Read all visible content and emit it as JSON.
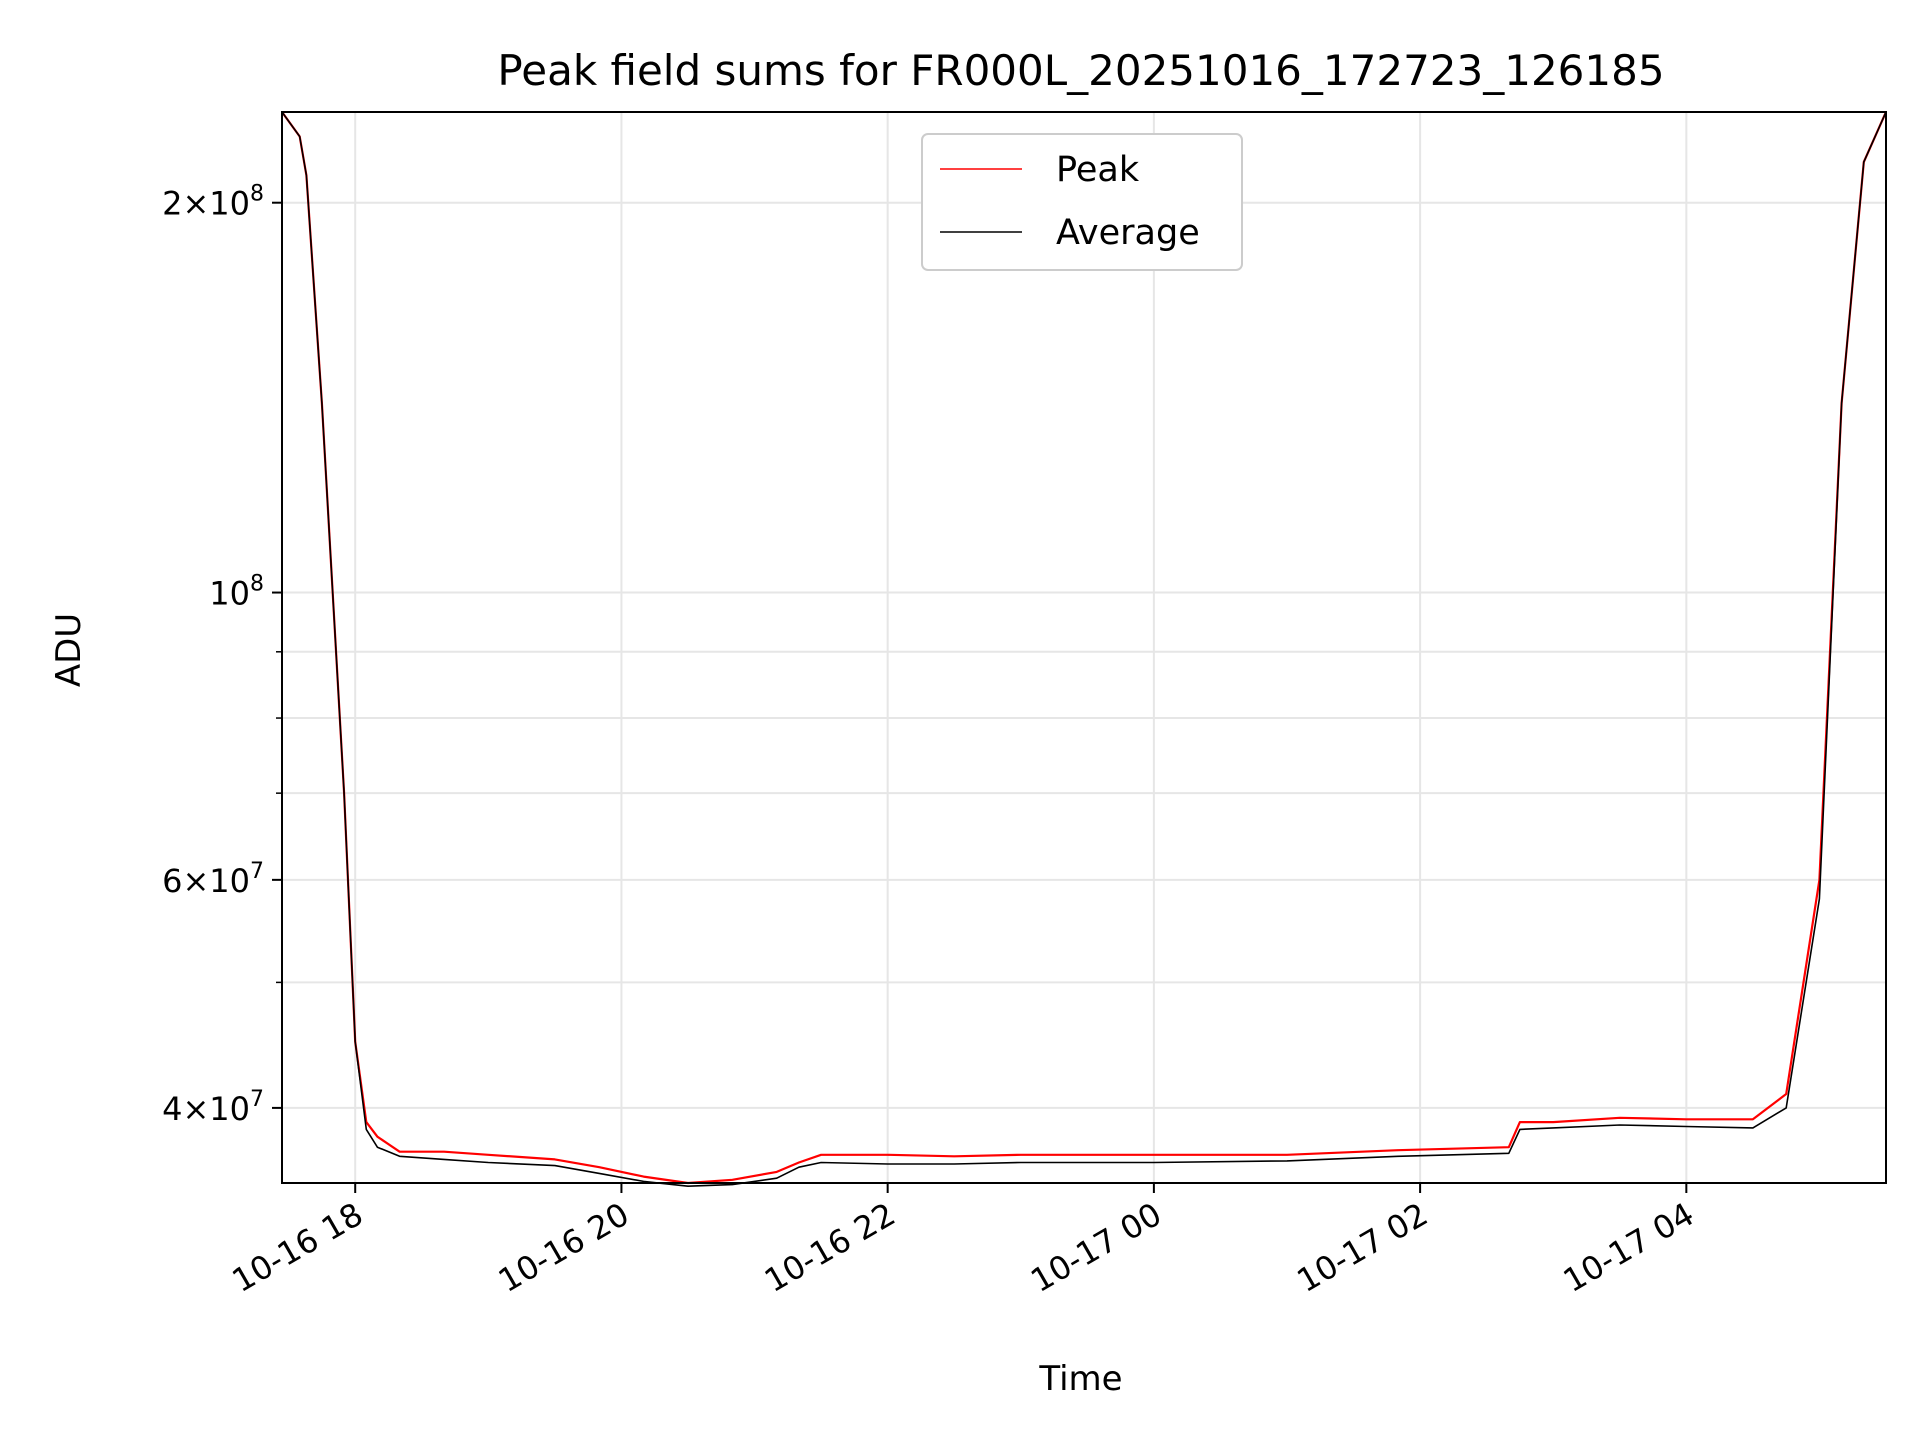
{
  "chart_data": {
    "type": "line",
    "title": "Peak field sums for FR000L_20251016_172723_126185",
    "xlabel": "Time",
    "ylabel": "ADU",
    "yscale": "log",
    "xlim": [
      "2025-10-16 17:27",
      "2025-10-17 05:30"
    ],
    "ylim": [
      35000000,
      235000000
    ],
    "grid": true,
    "legend_position": "upper center",
    "x_ticks": [
      "10-16 18",
      "10-16 20",
      "10-16 22",
      "10-17 00",
      "10-17 02",
      "10-17 04"
    ],
    "y_ticks_major": [
      {
        "value": 40000000,
        "base": "4",
        "exp": "7"
      },
      {
        "value": 60000000,
        "base": "6",
        "exp": "7"
      },
      {
        "value": 100000000,
        "base": "",
        "exp": "8"
      },
      {
        "value": 200000000,
        "base": "2",
        "exp": "8"
      }
    ],
    "y_ticks_minor": [
      50000000,
      70000000,
      80000000,
      90000000
    ],
    "series": [
      {
        "name": "Peak",
        "color": "#ff0000",
        "x": [
          "2025-10-16 17:27",
          "2025-10-16 17:35",
          "2025-10-16 17:38",
          "2025-10-16 17:45",
          "2025-10-16 17:55",
          "2025-10-16 18:00",
          "2025-10-16 18:05",
          "2025-10-16 18:10",
          "2025-10-16 18:20",
          "2025-10-16 18:40",
          "2025-10-16 19:00",
          "2025-10-16 19:30",
          "2025-10-16 19:50",
          "2025-10-16 20:10",
          "2025-10-16 20:30",
          "2025-10-16 20:50",
          "2025-10-16 21:10",
          "2025-10-16 21:20",
          "2025-10-16 21:30",
          "2025-10-16 22:00",
          "2025-10-16 22:30",
          "2025-10-16 23:00",
          "2025-10-17 00:00",
          "2025-10-17 01:00",
          "2025-10-17 01:50",
          "2025-10-17 02:40",
          "2025-10-17 02:45",
          "2025-10-17 03:00",
          "2025-10-17 03:30",
          "2025-10-17 04:00",
          "2025-10-17 04:30",
          "2025-10-17 04:45",
          "2025-10-17 05:00",
          "2025-10-17 05:10",
          "2025-10-17 05:20",
          "2025-10-17 05:30"
        ],
        "y": [
          235000000,
          225000000,
          210000000,
          140000000,
          70000000,
          45000000,
          39000000,
          38000000,
          37000000,
          37000000,
          36800000,
          36500000,
          36000000,
          35400000,
          35000000,
          35200000,
          35700000,
          36300000,
          36800000,
          36800000,
          36700000,
          36800000,
          36800000,
          36800000,
          37100000,
          37300000,
          39000000,
          39000000,
          39300000,
          39200000,
          39200000,
          41000000,
          60000000,
          140000000,
          215000000,
          235000000
        ]
      },
      {
        "name": "Average",
        "color": "#000000",
        "x": [
          "2025-10-16 17:27",
          "2025-10-16 17:35",
          "2025-10-16 17:38",
          "2025-10-16 17:45",
          "2025-10-16 17:55",
          "2025-10-16 18:00",
          "2025-10-16 18:05",
          "2025-10-16 18:10",
          "2025-10-16 18:20",
          "2025-10-16 18:40",
          "2025-10-16 19:00",
          "2025-10-16 19:30",
          "2025-10-16 19:50",
          "2025-10-16 20:10",
          "2025-10-16 20:30",
          "2025-10-16 20:50",
          "2025-10-16 21:10",
          "2025-10-16 21:20",
          "2025-10-16 21:30",
          "2025-10-16 22:00",
          "2025-10-16 22:30",
          "2025-10-16 23:00",
          "2025-10-17 00:00",
          "2025-10-17 01:00",
          "2025-10-17 01:50",
          "2025-10-17 02:40",
          "2025-10-17 02:45",
          "2025-10-17 03:00",
          "2025-10-17 03:30",
          "2025-10-17 04:00",
          "2025-10-17 04:30",
          "2025-10-17 04:45",
          "2025-10-17 05:00",
          "2025-10-17 05:10",
          "2025-10-17 05:20",
          "2025-10-17 05:30"
        ],
        "y": [
          235000000,
          225000000,
          210000000,
          140000000,
          70000000,
          45000000,
          38500000,
          37300000,
          36700000,
          36500000,
          36300000,
          36100000,
          35600000,
          35100000,
          34800000,
          34900000,
          35300000,
          36000000,
          36300000,
          36200000,
          36200000,
          36300000,
          36300000,
          36400000,
          36700000,
          36900000,
          38500000,
          38600000,
          38800000,
          38700000,
          38600000,
          40000000,
          58000000,
          140000000,
          215000000,
          235000000
        ]
      }
    ]
  }
}
